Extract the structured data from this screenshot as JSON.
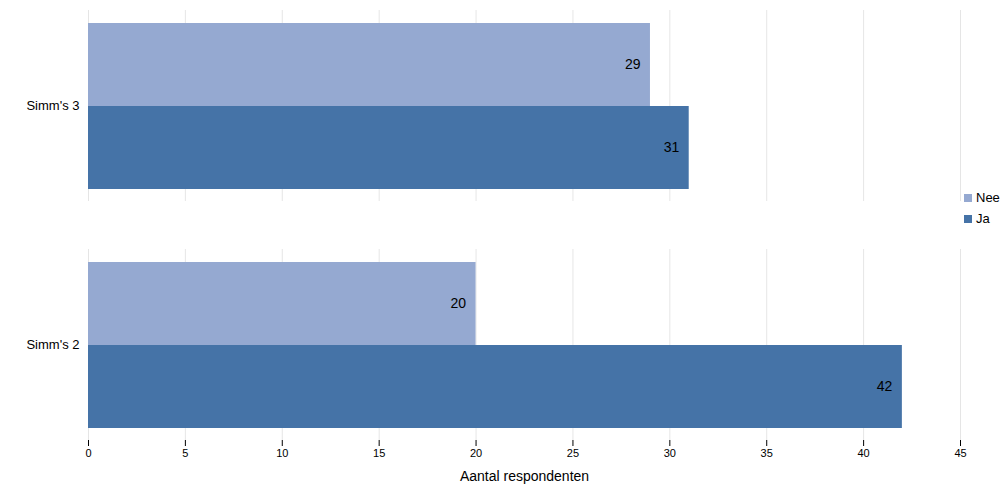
{
  "chart_data": {
    "type": "bar",
    "orientation": "horizontal",
    "categories": [
      "Simm's 3",
      "Simm's 2"
    ],
    "series": [
      {
        "name": "Nee",
        "color": "#95a9d1",
        "values": [
          29,
          20
        ]
      },
      {
        "name": "Ja",
        "color": "#4573a7",
        "values": [
          31,
          42
        ]
      }
    ],
    "xlabel": "Aantal respondenten",
    "xlim": [
      0,
      45
    ],
    "xticks": [
      0,
      5,
      10,
      15,
      20,
      25,
      30,
      35,
      40,
      45
    ],
    "grid": true,
    "legend": "right",
    "data_labels": true
  }
}
